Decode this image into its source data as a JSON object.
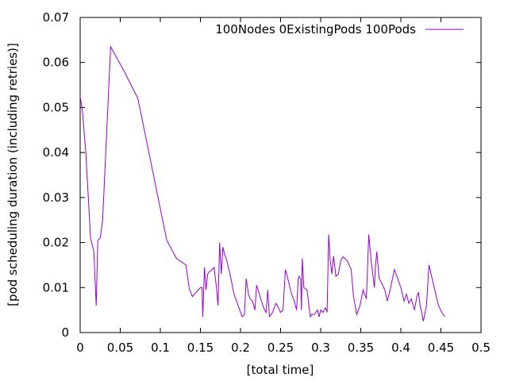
{
  "chart_data": {
    "type": "line",
    "xlabel": "[total time]",
    "ylabel": "[pod scheduling duration (including retries)]",
    "xlim": [
      0,
      0.5
    ],
    "ylim": [
      0,
      0.07
    ],
    "x_ticks": [
      "0",
      "0.05",
      "0.1",
      "0.15",
      "0.2",
      "0.25",
      "0.3",
      "0.35",
      "0.4",
      "0.45",
      "0.5"
    ],
    "y_ticks": [
      "0",
      "0.01",
      "0.02",
      "0.03",
      "0.04",
      "0.05",
      "0.06",
      "0.07"
    ],
    "grid": false,
    "legend_position": "top-right",
    "series": [
      {
        "name": "100Nodes 0ExistingPods 100Pods",
        "color": "#9400d3",
        "x": [
          0.0,
          0.003,
          0.007,
          0.013,
          0.017,
          0.02,
          0.022,
          0.025,
          0.028,
          0.038,
          0.055,
          0.072,
          0.108,
          0.12,
          0.132,
          0.136,
          0.14,
          0.15,
          0.152,
          0.153,
          0.155,
          0.157,
          0.159,
          0.161,
          0.165,
          0.167,
          0.17,
          0.172,
          0.174,
          0.176,
          0.178,
          0.18,
          0.183,
          0.188,
          0.192,
          0.196,
          0.202,
          0.205,
          0.207,
          0.21,
          0.212,
          0.215,
          0.218,
          0.22,
          0.222,
          0.226,
          0.23,
          0.232,
          0.234,
          0.236,
          0.24,
          0.244,
          0.246,
          0.25,
          0.253,
          0.256,
          0.259,
          0.263,
          0.267,
          0.27,
          0.272,
          0.273,
          0.275,
          0.276,
          0.277,
          0.279,
          0.283,
          0.287,
          0.289,
          0.292,
          0.296,
          0.298,
          0.3,
          0.303,
          0.306,
          0.308,
          0.31,
          0.312,
          0.314,
          0.316,
          0.319,
          0.322,
          0.325,
          0.328,
          0.333,
          0.338,
          0.341,
          0.345,
          0.349,
          0.353,
          0.357,
          0.36,
          0.363,
          0.367,
          0.368,
          0.37,
          0.373,
          0.376,
          0.38,
          0.383,
          0.386,
          0.392,
          0.396,
          0.4,
          0.404,
          0.407,
          0.41,
          0.413,
          0.417,
          0.42,
          0.422,
          0.424,
          0.426,
          0.428,
          0.432,
          0.435,
          0.439,
          0.443,
          0.447,
          0.451,
          0.455
        ],
        "y": [
          0.0525,
          0.049,
          0.04,
          0.021,
          0.018,
          0.006,
          0.0205,
          0.021,
          0.025,
          0.0635,
          0.058,
          0.052,
          0.0205,
          0.0165,
          0.015,
          0.0098,
          0.008,
          0.01,
          0.01,
          0.0035,
          0.0145,
          0.0095,
          0.013,
          0.0135,
          0.014,
          0.0145,
          0.01,
          0.006,
          0.02,
          0.013,
          0.019,
          0.0175,
          0.016,
          0.012,
          0.0085,
          0.0065,
          0.0035,
          0.004,
          0.012,
          0.0085,
          0.0075,
          0.007,
          0.005,
          0.0105,
          0.0095,
          0.007,
          0.005,
          0.0045,
          0.0095,
          0.0035,
          0.0045,
          0.0065,
          0.006,
          0.0045,
          0.005,
          0.014,
          0.012,
          0.009,
          0.007,
          0.005,
          0.012,
          0.0125,
          0.012,
          0.005,
          0.0165,
          0.01,
          0.0095,
          0.0035,
          0.004,
          0.004,
          0.005,
          0.0035,
          0.005,
          0.0045,
          0.0055,
          0.0045,
          0.0218,
          0.016,
          0.013,
          0.017,
          0.0125,
          0.013,
          0.016,
          0.0168,
          0.016,
          0.014,
          0.008,
          0.004,
          0.006,
          0.0095,
          0.0075,
          0.0218,
          0.016,
          0.01,
          0.014,
          0.018,
          0.012,
          0.011,
          0.0095,
          0.007,
          0.009,
          0.014,
          0.012,
          0.01,
          0.007,
          0.0085,
          0.0065,
          0.0075,
          0.005,
          0.008,
          0.009,
          0.006,
          0.0045,
          0.0025,
          0.006,
          0.015,
          0.012,
          0.009,
          0.006,
          0.0045,
          0.0035
        ]
      }
    ]
  }
}
